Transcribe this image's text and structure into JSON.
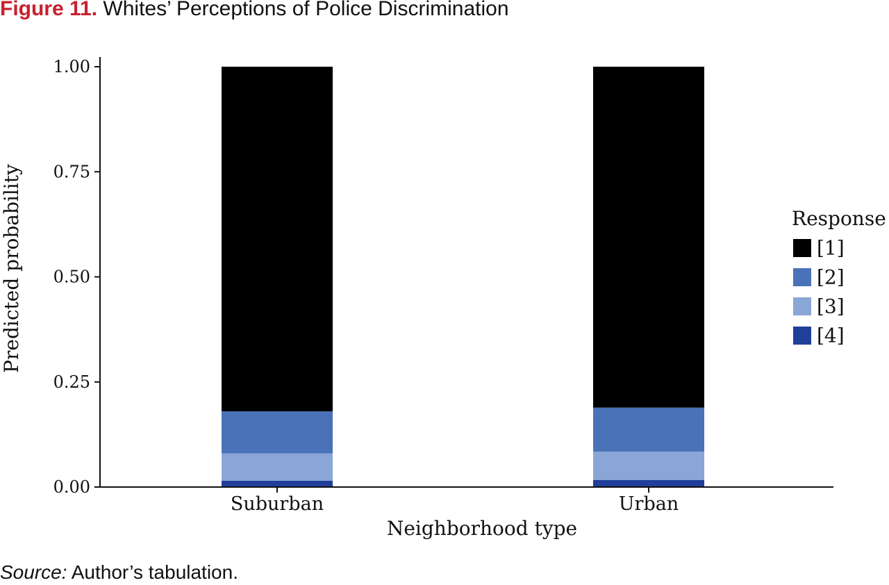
{
  "figure": {
    "label": "Figure 11.",
    "title": "Whites’ Perceptions of Police Discrimination"
  },
  "source": {
    "label": "Source:",
    "text": "Author’s tabulation."
  },
  "colors": {
    "1": "#000000",
    "2": "#4a72b8",
    "3": "#8aa6d6",
    "4": "#1f3f99",
    "title_accent": "#c8202f"
  },
  "chart_data": {
    "type": "bar",
    "stacked": true,
    "title": "",
    "xlabel": "Neighborhood type",
    "ylabel": "Predicted probability",
    "ylim": [
      0,
      1
    ],
    "yticks": [
      0,
      0.25,
      0.5,
      0.75,
      1
    ],
    "ytick_labels": [
      "0.00",
      "0.25",
      "0.50",
      "0.75",
      "1.00"
    ],
    "grid": false,
    "categories": [
      "Suburban",
      "Urban"
    ],
    "legend": {
      "title": "Response",
      "placement": "right"
    },
    "series": [
      {
        "name": "[4]",
        "color": "#1f3f99",
        "values": [
          0.015,
          0.017
        ]
      },
      {
        "name": "[3]",
        "color": "#8aa6d6",
        "values": [
          0.065,
          0.067
        ]
      },
      {
        "name": "[2]",
        "color": "#4a72b8",
        "values": [
          0.1,
          0.105
        ]
      },
      {
        "name": "[1]",
        "color": "#000000",
        "values": [
          0.82,
          0.811
        ]
      }
    ],
    "legend_order": [
      "[1]",
      "[2]",
      "[3]",
      "[4]"
    ]
  }
}
